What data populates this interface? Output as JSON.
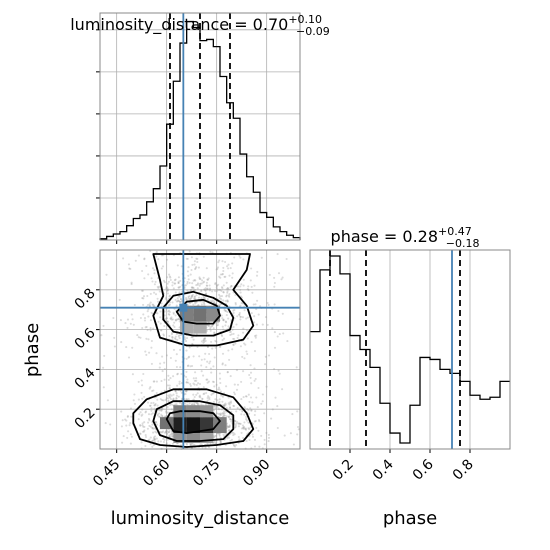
{
  "chart_data": {
    "type": "corner",
    "parameters": [
      "luminosity_distance",
      "phase"
    ],
    "truths": {
      "luminosity_distance": 0.65,
      "phase": 0.71
    },
    "marginals": [
      {
        "parameter": "luminosity_distance",
        "title_main": "luminosity_distance = 0.70",
        "title_sup": "+0.10",
        "title_sub": "−0.09",
        "xlim": [
          0.4,
          1.0
        ],
        "quantiles": [
          0.61,
          0.7,
          0.79
        ],
        "hist": {
          "edges": [
            0.4,
            0.42,
            0.44,
            0.46,
            0.48,
            0.5,
            0.52,
            0.54,
            0.56,
            0.58,
            0.6,
            0.62,
            0.64,
            0.66,
            0.68,
            0.7,
            0.72,
            0.74,
            0.76,
            0.78,
            0.8,
            0.82,
            0.84,
            0.86,
            0.88,
            0.9,
            0.92,
            0.94,
            0.96,
            0.98,
            1.0
          ],
          "counts": [
            1,
            3,
            5,
            7,
            12,
            18,
            21,
            32,
            43,
            62,
            97,
            133,
            165,
            183,
            178,
            167,
            168,
            162,
            137,
            115,
            102,
            72,
            53,
            40,
            23,
            19,
            11,
            7,
            4,
            2
          ]
        }
      },
      {
        "parameter": "phase",
        "title_main": "phase = 0.28",
        "title_sup": "+0.47",
        "title_sub": "−0.18",
        "xlim": [
          0.0,
          1.0
        ],
        "quantiles": [
          0.1,
          0.28,
          0.75
        ],
        "hist": {
          "edges": [
            0.0,
            0.05,
            0.1,
            0.15,
            0.2,
            0.25,
            0.3,
            0.35,
            0.4,
            0.45,
            0.5,
            0.55,
            0.6,
            0.65,
            0.7,
            0.75,
            0.8,
            0.85,
            0.9,
            0.95,
            1.0
          ],
          "counts": [
            0.59,
            0.9,
            0.97,
            0.88,
            0.57,
            0.5,
            0.41,
            0.23,
            0.08,
            0.03,
            0.22,
            0.46,
            0.45,
            0.4,
            0.38,
            0.34,
            0.27,
            0.25,
            0.26,
            0.34
          ]
        }
      }
    ],
    "joint": {
      "x": "luminosity_distance",
      "y": "phase",
      "xlim": [
        0.4,
        1.0
      ],
      "ylim": [
        0.0,
        1.0
      ],
      "modes": [
        {
          "x": 0.68,
          "y": 0.12
        },
        {
          "x": 0.69,
          "y": 0.69
        }
      ],
      "contours": [
        [
          [
            0.6,
            0.15
          ],
          [
            0.62,
            0.09
          ],
          [
            0.66,
            0.08
          ],
          [
            0.7,
            0.09
          ],
          [
            0.74,
            0.1
          ],
          [
            0.76,
            0.14
          ],
          [
            0.74,
            0.18
          ],
          [
            0.7,
            0.19
          ],
          [
            0.64,
            0.19
          ],
          [
            0.61,
            0.18
          ]
        ],
        [
          [
            0.56,
            0.14
          ],
          [
            0.58,
            0.07
          ],
          [
            0.63,
            0.04
          ],
          [
            0.7,
            0.04
          ],
          [
            0.77,
            0.05
          ],
          [
            0.8,
            0.1
          ],
          [
            0.8,
            0.17
          ],
          [
            0.76,
            0.22
          ],
          [
            0.7,
            0.24
          ],
          [
            0.62,
            0.24
          ],
          [
            0.57,
            0.2
          ]
        ],
        [
          [
            0.5,
            0.13
          ],
          [
            0.52,
            0.05
          ],
          [
            0.58,
            0.02
          ],
          [
            0.66,
            0.01
          ],
          [
            0.75,
            0.02
          ],
          [
            0.83,
            0.04
          ],
          [
            0.86,
            0.1
          ],
          [
            0.84,
            0.18
          ],
          [
            0.8,
            0.26
          ],
          [
            0.72,
            0.3
          ],
          [
            0.62,
            0.3
          ],
          [
            0.54,
            0.25
          ],
          [
            0.5,
            0.18
          ]
        ],
        [
          [
            0.63,
            0.69
          ],
          [
            0.65,
            0.64
          ],
          [
            0.69,
            0.63
          ],
          [
            0.74,
            0.63
          ],
          [
            0.76,
            0.67
          ],
          [
            0.75,
            0.72
          ],
          [
            0.71,
            0.75
          ],
          [
            0.66,
            0.74
          ]
        ],
        [
          [
            0.59,
            0.65
          ],
          [
            0.62,
            0.59
          ],
          [
            0.68,
            0.57
          ],
          [
            0.74,
            0.57
          ],
          [
            0.79,
            0.6
          ],
          [
            0.8,
            0.66
          ],
          [
            0.78,
            0.72
          ],
          [
            0.74,
            0.76
          ],
          [
            0.68,
            0.79
          ],
          [
            0.62,
            0.77
          ],
          [
            0.59,
            0.71
          ]
        ],
        [
          [
            0.56,
            0.98
          ],
          [
            0.58,
            0.85
          ],
          [
            0.59,
            0.77
          ],
          [
            0.56,
            0.67
          ],
          [
            0.58,
            0.56
          ],
          [
            0.66,
            0.52
          ],
          [
            0.75,
            0.52
          ],
          [
            0.83,
            0.55
          ],
          [
            0.86,
            0.62
          ],
          [
            0.84,
            0.72
          ],
          [
            0.8,
            0.8
          ],
          [
            0.84,
            0.9
          ],
          [
            0.85,
            0.98
          ]
        ]
      ],
      "density_cells": [
        {
          "x0": 0.62,
          "x1": 0.66,
          "y0": 0.08,
          "y1": 0.16,
          "v": 0.95
        },
        {
          "x0": 0.66,
          "x1": 0.7,
          "y0": 0.08,
          "y1": 0.16,
          "v": 1.0
        },
        {
          "x0": 0.7,
          "x1": 0.74,
          "y0": 0.08,
          "y1": 0.16,
          "v": 0.85
        },
        {
          "x0": 0.58,
          "x1": 0.62,
          "y0": 0.1,
          "y1": 0.16,
          "v": 0.6
        },
        {
          "x0": 0.74,
          "x1": 0.78,
          "y0": 0.08,
          "y1": 0.16,
          "v": 0.55
        },
        {
          "x0": 0.62,
          "x1": 0.66,
          "y0": 0.16,
          "y1": 0.22,
          "v": 0.55
        },
        {
          "x0": 0.66,
          "x1": 0.7,
          "y0": 0.16,
          "y1": 0.22,
          "v": 0.5
        },
        {
          "x0": 0.7,
          "x1": 0.74,
          "y0": 0.16,
          "y1": 0.22,
          "v": 0.45
        },
        {
          "x0": 0.62,
          "x1": 0.66,
          "y0": 0.03,
          "y1": 0.08,
          "v": 0.45
        },
        {
          "x0": 0.66,
          "x1": 0.7,
          "y0": 0.03,
          "y1": 0.08,
          "v": 0.5
        },
        {
          "x0": 0.7,
          "x1": 0.74,
          "y0": 0.03,
          "y1": 0.08,
          "v": 0.4
        },
        {
          "x0": 0.64,
          "x1": 0.68,
          "y0": 0.64,
          "y1": 0.72,
          "v": 0.55
        },
        {
          "x0": 0.68,
          "x1": 0.72,
          "y0": 0.64,
          "y1": 0.72,
          "v": 0.6
        },
        {
          "x0": 0.72,
          "x1": 0.76,
          "y0": 0.64,
          "y1": 0.72,
          "v": 0.5
        },
        {
          "x0": 0.64,
          "x1": 0.68,
          "y0": 0.58,
          "y1": 0.64,
          "v": 0.35
        },
        {
          "x0": 0.68,
          "x1": 0.72,
          "y0": 0.58,
          "y1": 0.64,
          "v": 0.35
        }
      ]
    },
    "x_ticks": {
      "luminosity_distance": {
        "values": [
          0.45,
          0.6,
          0.75,
          0.9
        ],
        "labels": [
          "0.45",
          "0.60",
          "0.75",
          "0.90"
        ]
      },
      "phase": {
        "values": [
          0.2,
          0.4,
          0.6,
          0.8
        ],
        "labels": [
          "0.2",
          "0.4",
          "0.6",
          "0.8"
        ]
      }
    },
    "y_ticks": {
      "phase": {
        "values": [
          0.2,
          0.4,
          0.6,
          0.8
        ],
        "labels": [
          "0.2",
          "0.4",
          "0.6",
          "0.8"
        ]
      }
    },
    "xlabels": [
      "luminosity_distance",
      "phase"
    ],
    "ylabel": "phase",
    "grid": true,
    "colors": {
      "truth": "#4682b4",
      "hist": "#000000",
      "quantile": "#000000",
      "scatter": "#9a9a9a",
      "grid": "#b0b0b0"
    }
  }
}
